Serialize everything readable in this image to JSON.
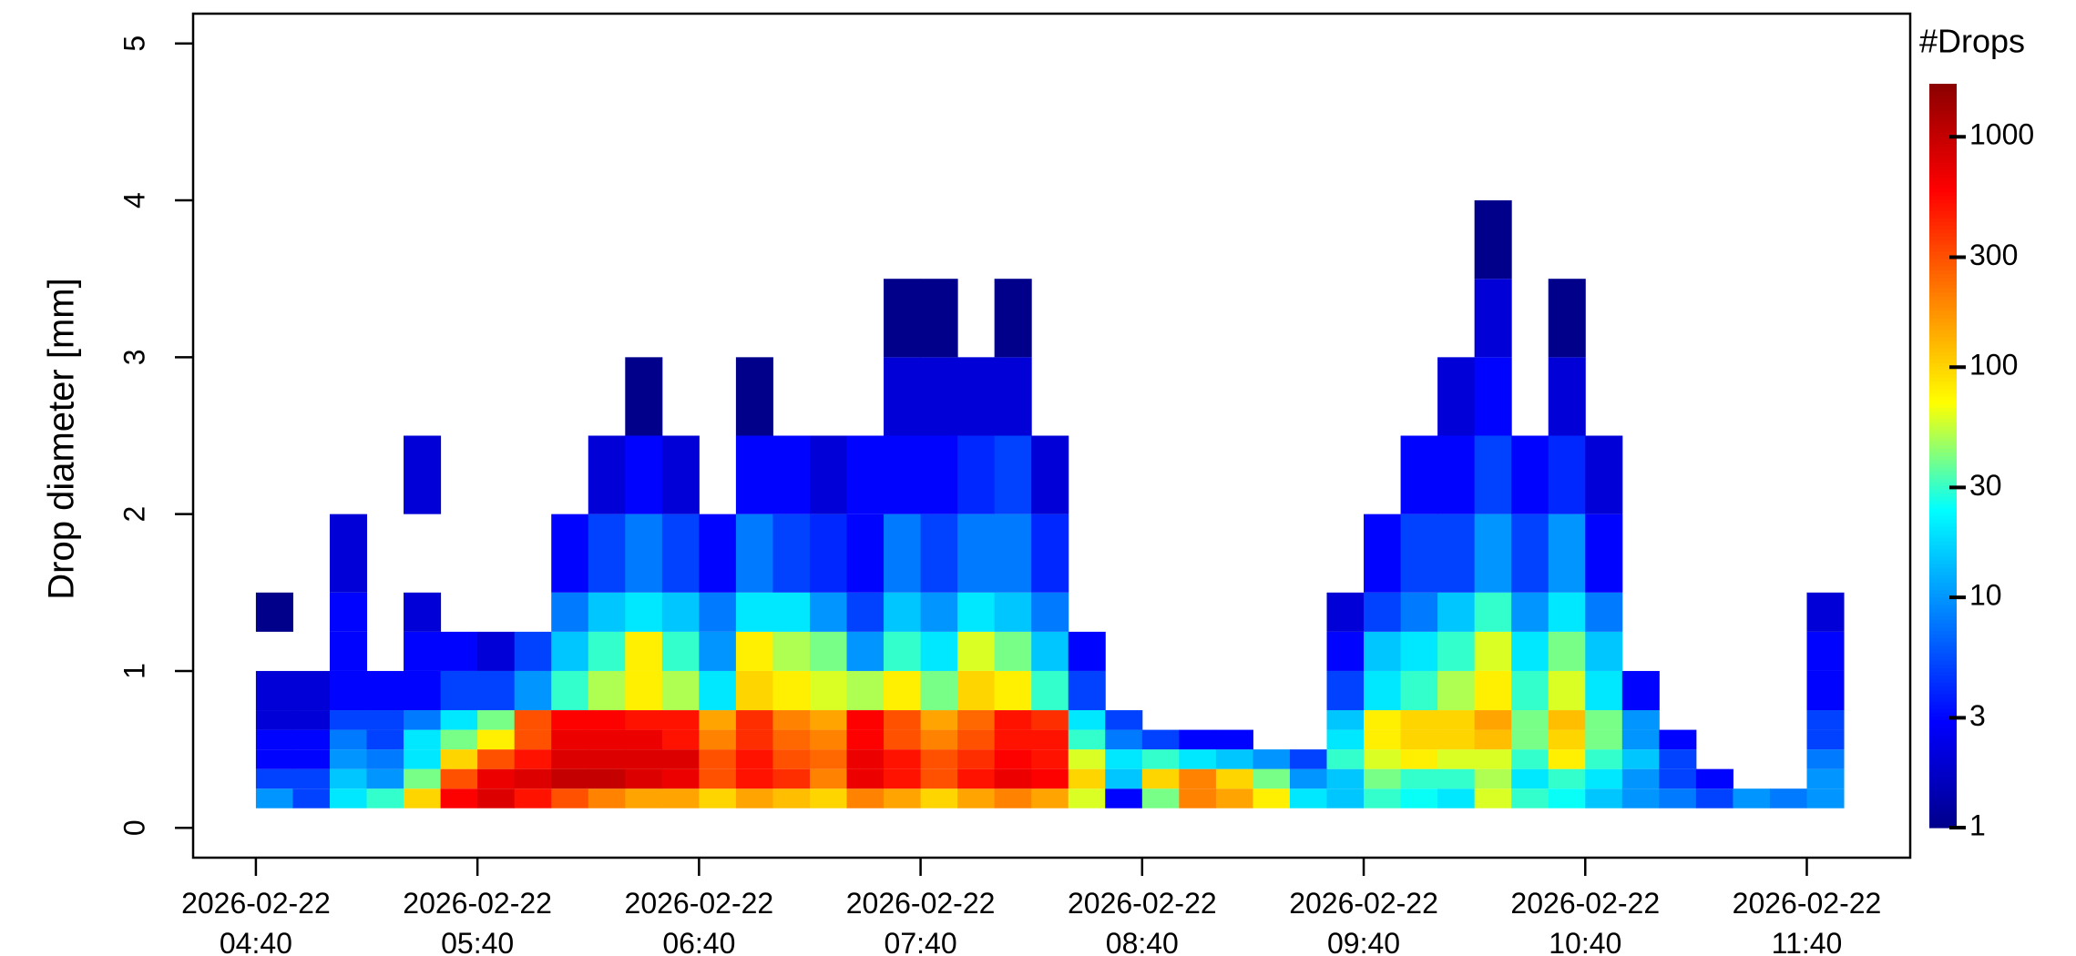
{
  "chart_data": {
    "type": "heatmap",
    "ylabel": "Drop diameter [mm]",
    "colorbar_title": "#Drops",
    "x_bins": [
      "2026-02-22 04:40",
      "2026-02-22 04:50",
      "2026-02-22 05:00",
      "2026-02-22 05:10",
      "2026-02-22 05:20",
      "2026-02-22 05:30",
      "2026-02-22 05:40",
      "2026-02-22 05:50",
      "2026-02-22 06:00",
      "2026-02-22 06:10",
      "2026-02-22 06:20",
      "2026-02-22 06:30",
      "2026-02-22 06:40",
      "2026-02-22 06:50",
      "2026-02-22 07:00",
      "2026-02-22 07:10",
      "2026-02-22 07:20",
      "2026-02-22 07:30",
      "2026-02-22 07:40",
      "2026-02-22 07:50",
      "2026-02-22 08:00",
      "2026-02-22 08:10",
      "2026-02-22 08:20",
      "2026-02-22 08:30",
      "2026-02-22 08:40",
      "2026-02-22 08:50",
      "2026-02-22 09:00",
      "2026-02-22 09:10",
      "2026-02-22 09:20",
      "2026-02-22 09:30",
      "2026-02-22 09:40",
      "2026-02-22 09:50",
      "2026-02-22 10:00",
      "2026-02-22 10:10",
      "2026-02-22 10:20",
      "2026-02-22 10:30",
      "2026-02-22 10:40",
      "2026-02-22 10:50",
      "2026-02-22 11:00",
      "2026-02-22 11:10",
      "2026-02-22 11:20",
      "2026-02-22 11:30",
      "2026-02-22 11:40",
      "2026-02-22 11:50"
    ],
    "y_bins": [
      0.125,
      0.25,
      0.375,
      0.5,
      0.625,
      0.75,
      1,
      1.25,
      1.5,
      2,
      2.5,
      3,
      3.5,
      4
    ],
    "values": [
      [
        10,
        5,
        3,
        3,
        2,
        2,
        null,
        1,
        null,
        null,
        null,
        null,
        null
      ],
      [
        5,
        5,
        3,
        3,
        2,
        2,
        null,
        null,
        null,
        null,
        null,
        null,
        null
      ],
      [
        20,
        15,
        10,
        8,
        5,
        3,
        3,
        3,
        2,
        null,
        null,
        null,
        null
      ],
      [
        30,
        10,
        8,
        5,
        5,
        3,
        null,
        null,
        null,
        null,
        null,
        null,
        null
      ],
      [
        100,
        40,
        20,
        20,
        8,
        3,
        3,
        2,
        null,
        2,
        null,
        null,
        null
      ],
      [
        600,
        300,
        100,
        40,
        20,
        5,
        3,
        null,
        null,
        null,
        null,
        null,
        null
      ],
      [
        800,
        700,
        300,
        80,
        40,
        5,
        2,
        null,
        null,
        null,
        null,
        null,
        null
      ],
      [
        500,
        800,
        500,
        300,
        300,
        10,
        5,
        null,
        null,
        null,
        null,
        null,
        null
      ],
      [
        300,
        1000,
        800,
        700,
        600,
        30,
        15,
        8,
        3,
        null,
        null,
        null,
        null
      ],
      [
        200,
        1000,
        800,
        700,
        600,
        50,
        30,
        15,
        5,
        2,
        null,
        null,
        null
      ],
      [
        150,
        800,
        800,
        700,
        500,
        80,
        80,
        20,
        8,
        3,
        1,
        null,
        null
      ],
      [
        150,
        700,
        800,
        500,
        500,
        50,
        30,
        15,
        5,
        2,
        null,
        null,
        null
      ],
      [
        100,
        300,
        300,
        200,
        150,
        20,
        10,
        8,
        3,
        null,
        null,
        null,
        null
      ],
      [
        150,
        500,
        500,
        400,
        400,
        100,
        80,
        20,
        8,
        3,
        1,
        null,
        null
      ],
      [
        120,
        400,
        300,
        250,
        200,
        80,
        50,
        20,
        5,
        3,
        null,
        null,
        null
      ],
      [
        100,
        200,
        250,
        200,
        150,
        60,
        40,
        10,
        4,
        2,
        null,
        null,
        null
      ],
      [
        200,
        700,
        700,
        600,
        600,
        50,
        10,
        5,
        3,
        3,
        null,
        null,
        null
      ],
      [
        150,
        500,
        500,
        300,
        300,
        80,
        30,
        15,
        8,
        3,
        2,
        1,
        null
      ],
      [
        100,
        300,
        300,
        200,
        150,
        40,
        20,
        10,
        5,
        3,
        2,
        1,
        null
      ],
      [
        150,
        500,
        400,
        300,
        250,
        100,
        60,
        20,
        8,
        4,
        2,
        null,
        null
      ],
      [
        200,
        700,
        600,
        500,
        500,
        80,
        40,
        15,
        8,
        5,
        2,
        1,
        null
      ],
      [
        150,
        600,
        500,
        500,
        400,
        30,
        15,
        8,
        4,
        2,
        null,
        null,
        null
      ],
      [
        60,
        100,
        60,
        30,
        20,
        5,
        3,
        null,
        null,
        null,
        null,
        null,
        null
      ],
      [
        3,
        15,
        20,
        8,
        5,
        null,
        null,
        null,
        null,
        null,
        null,
        null,
        null
      ],
      [
        40,
        100,
        30,
        5,
        null,
        null,
        null,
        null,
        null,
        null,
        null,
        null,
        null
      ],
      [
        200,
        200,
        20,
        3,
        null,
        null,
        null,
        null,
        null,
        null,
        null,
        null,
        null
      ],
      [
        150,
        100,
        15,
        3,
        null,
        null,
        null,
        null,
        null,
        null,
        null,
        null,
        null
      ],
      [
        80,
        40,
        10,
        null,
        null,
        null,
        null,
        null,
        null,
        null,
        null,
        null,
        null
      ],
      [
        20,
        10,
        5,
        null,
        null,
        null,
        null,
        null,
        null,
        null,
        null,
        null,
        null
      ],
      [
        15,
        15,
        30,
        20,
        15,
        5,
        3,
        2,
        null,
        null,
        null,
        null,
        null
      ],
      [
        30,
        40,
        60,
        80,
        80,
        20,
        15,
        5,
        3,
        null,
        null,
        null,
        null
      ],
      [
        25,
        30,
        80,
        100,
        100,
        30,
        20,
        8,
        5,
        3,
        null,
        null,
        null
      ],
      [
        20,
        30,
        60,
        100,
        100,
        50,
        30,
        15,
        5,
        3,
        2,
        null,
        null
      ],
      [
        60,
        50,
        60,
        120,
        150,
        80,
        60,
        30,
        10,
        5,
        3,
        2,
        1
      ],
      [
        30,
        20,
        30,
        40,
        40,
        30,
        20,
        10,
        5,
        3,
        null,
        null,
        null
      ],
      [
        25,
        30,
        80,
        100,
        120,
        60,
        40,
        20,
        10,
        4,
        2,
        1,
        null
      ],
      [
        15,
        20,
        30,
        40,
        40,
        20,
        15,
        8,
        3,
        2,
        null,
        null,
        null
      ],
      [
        10,
        10,
        15,
        10,
        10,
        3,
        null,
        null,
        null,
        null,
        null,
        null,
        null
      ],
      [
        8,
        5,
        5,
        3,
        null,
        null,
        null,
        null,
        null,
        null,
        null,
        null,
        null
      ],
      [
        5,
        3,
        null,
        null,
        null,
        null,
        null,
        null,
        null,
        null,
        null,
        null,
        null
      ],
      [
        10,
        null,
        null,
        null,
        null,
        null,
        null,
        null,
        null,
        null,
        null,
        null,
        null
      ],
      [
        8,
        null,
        null,
        null,
        null,
        null,
        null,
        null,
        null,
        null,
        null,
        null,
        null
      ],
      [
        10,
        10,
        8,
        5,
        5,
        3,
        3,
        2,
        null,
        null,
        null,
        null,
        null
      ]
    ],
    "xlim": [
      "2026-02-22 04:23",
      "2026-02-22 12:08"
    ],
    "xticks": [
      "2026-02-22 04:40",
      "2026-02-22 05:40",
      "2026-02-22 06:40",
      "2026-02-22 07:40",
      "2026-02-22 08:40",
      "2026-02-22 09:40",
      "2026-02-22 10:40",
      "2026-02-22 11:40"
    ],
    "ylim": [
      -0.19,
      5.19
    ],
    "yticks": [
      0,
      1,
      2,
      3,
      4,
      5
    ],
    "color_scale": "log",
    "clim": [
      1,
      1700
    ],
    "colorbar_ticks": [
      1,
      3,
      10,
      30,
      100,
      300,
      1000
    ],
    "colormap": [
      "#00008b",
      "#0000ff",
      "#0080ff",
      "#00ffff",
      "#ffff00",
      "#ff8000",
      "#ff0000",
      "#8b0000"
    ]
  }
}
